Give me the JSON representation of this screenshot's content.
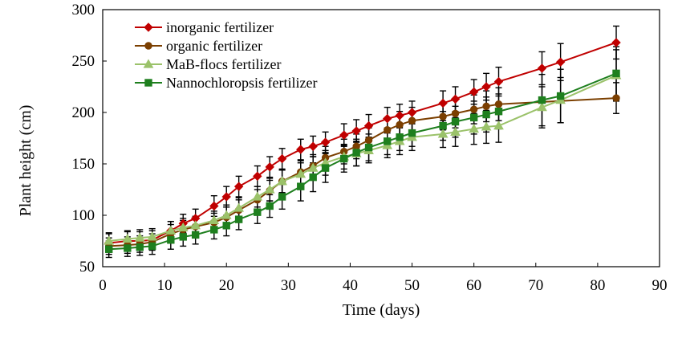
{
  "chart_data": {
    "type": "line",
    "title": "",
    "xlabel": "Time (days)",
    "ylabel": "Plant height (cm)",
    "xlim": [
      0,
      90
    ],
    "ylim": [
      50,
      300
    ],
    "xticks": [
      0,
      10,
      20,
      30,
      40,
      50,
      60,
      70,
      80,
      90
    ],
    "yticks": [
      50,
      100,
      150,
      200,
      250,
      300
    ],
    "grid": false,
    "legend_position": "top-left",
    "series": [
      {
        "name": "inorganic fertilizer",
        "color": "#c00000",
        "marker": "diamond",
        "x": [
          1,
          4,
          6,
          8,
          11,
          13,
          15,
          18,
          20,
          22,
          25,
          27,
          29,
          32,
          34,
          36,
          39,
          41,
          43,
          46,
          48,
          50,
          55,
          57,
          60,
          62,
          64,
          71,
          74,
          83
        ],
        "y": [
          73,
          75,
          75,
          76,
          85,
          92,
          97,
          109,
          118,
          128,
          138,
          147,
          155,
          164,
          167,
          171,
          178,
          182,
          187,
          194,
          197,
          200,
          209,
          213,
          220,
          225,
          230,
          243,
          249,
          268
        ],
        "err": [
          9,
          9,
          9,
          9,
          9,
          9,
          9,
          10,
          10,
          10,
          10,
          10,
          10,
          10,
          10,
          10,
          11,
          11,
          11,
          11,
          11,
          11,
          12,
          12,
          12,
          13,
          14,
          16,
          18,
          16
        ]
      },
      {
        "name": "organic fertilizer",
        "color": "#7b3f00",
        "marker": "circle",
        "x": [
          1,
          4,
          6,
          8,
          11,
          13,
          15,
          18,
          20,
          22,
          25,
          27,
          29,
          32,
          34,
          36,
          39,
          41,
          43,
          46,
          48,
          50,
          55,
          57,
          60,
          62,
          64,
          83
        ],
        "y": [
          70,
          71,
          72,
          74,
          82,
          86,
          89,
          93,
          98,
          105,
          115,
          124,
          133,
          142,
          148,
          156,
          162,
          167,
          173,
          183,
          188,
          192,
          196,
          199,
          203,
          206,
          208,
          214
        ],
        "err": [
          8,
          8,
          8,
          8,
          9,
          9,
          9,
          9,
          10,
          10,
          10,
          10,
          11,
          11,
          11,
          11,
          12,
          12,
          12,
          12,
          13,
          13,
          13,
          14,
          14,
          15,
          16,
          15
        ]
      },
      {
        "name": "MaB-flocs fertilizer",
        "color": "#9bc26a",
        "marker": "triangle",
        "x": [
          1,
          4,
          6,
          8,
          11,
          13,
          15,
          18,
          20,
          22,
          25,
          27,
          29,
          32,
          34,
          36,
          39,
          41,
          43,
          46,
          48,
          50,
          55,
          57,
          60,
          62,
          64,
          71,
          74,
          83
        ],
        "y": [
          75,
          77,
          78,
          79,
          85,
          88,
          90,
          95,
          100,
          107,
          118,
          125,
          133,
          140,
          146,
          151,
          157,
          160,
          163,
          168,
          172,
          176,
          179,
          181,
          184,
          186,
          187,
          205,
          212,
          236
        ],
        "err": [
          8,
          8,
          8,
          8,
          9,
          9,
          9,
          9,
          10,
          10,
          10,
          11,
          11,
          11,
          11,
          12,
          12,
          12,
          12,
          12,
          13,
          13,
          13,
          14,
          15,
          16,
          16,
          20,
          22,
          25
        ]
      },
      {
        "name": "Nannochloropsis fertilizer",
        "color": "#1e7f1e",
        "marker": "square",
        "x": [
          1,
          4,
          6,
          8,
          11,
          13,
          15,
          18,
          20,
          22,
          25,
          27,
          29,
          32,
          34,
          36,
          39,
          41,
          43,
          46,
          48,
          50,
          55,
          57,
          60,
          62,
          64,
          71,
          74,
          83
        ],
        "y": [
          67,
          68,
          69,
          70,
          76,
          79,
          81,
          86,
          90,
          96,
          103,
          109,
          118,
          128,
          137,
          146,
          155,
          161,
          166,
          172,
          176,
          180,
          187,
          191,
          195,
          198,
          201,
          212,
          216,
          238
        ],
        "err": [
          8,
          8,
          8,
          8,
          9,
          9,
          9,
          9,
          10,
          10,
          11,
          11,
          12,
          14,
          14,
          14,
          13,
          13,
          13,
          13,
          13,
          13,
          14,
          15,
          16,
          17,
          17,
          25,
          26,
          26
        ]
      }
    ]
  }
}
